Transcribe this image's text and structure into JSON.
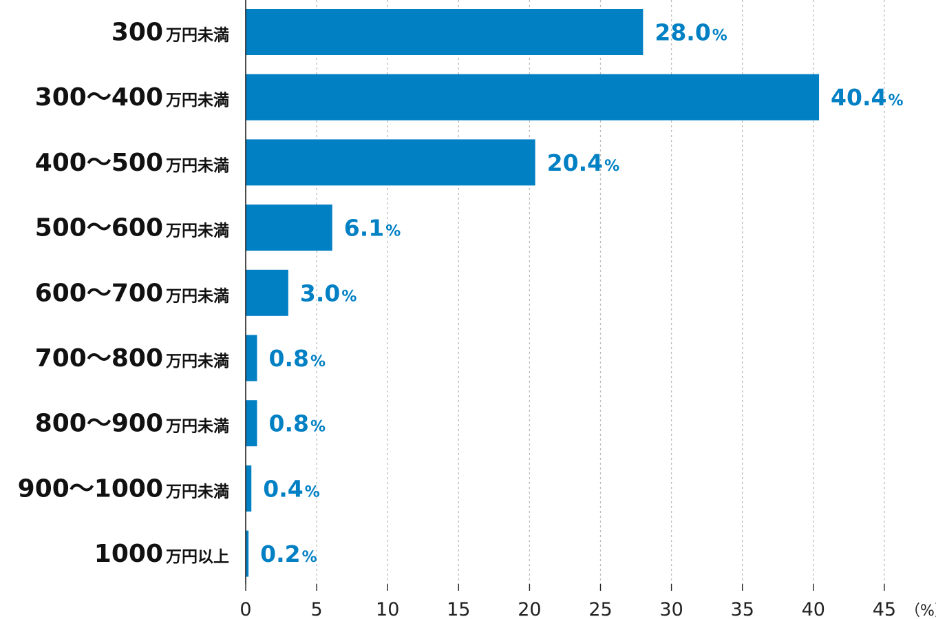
{
  "chart_data": {
    "type": "bar",
    "orientation": "horizontal",
    "categories": [
      {
        "range": "300",
        "unit": "万円未満"
      },
      {
        "range": "300～400",
        "unit": "万円未満"
      },
      {
        "range": "400～500",
        "unit": "万円未満"
      },
      {
        "range": "500～600",
        "unit": "万円未満"
      },
      {
        "range": "600～700",
        "unit": "万円未満"
      },
      {
        "range": "700～800",
        "unit": "万円未満"
      },
      {
        "range": "800～900",
        "unit": "万円未満"
      },
      {
        "range": "900～1000",
        "unit": "万円未満"
      },
      {
        "range": "1000",
        "unit": "万円以上"
      }
    ],
    "values": [
      28.0,
      40.4,
      20.4,
      6.1,
      3.0,
      0.8,
      0.8,
      0.4,
      0.2
    ],
    "value_labels": [
      "28.0",
      "40.4",
      "20.4",
      "6.1",
      "3.0",
      "0.8",
      "0.8",
      "0.4",
      "0.2"
    ],
    "value_suffix": "%",
    "x_unit": "（%）",
    "xlim": [
      0,
      45
    ],
    "x_ticks": [
      0,
      5,
      10,
      15,
      20,
      25,
      30,
      35,
      40,
      45
    ],
    "grid": "vertical-dotted",
    "colors": {
      "bar": "#0280c4",
      "value_label": "#0280c4",
      "category_label": "#111111",
      "axis": "#222222",
      "grid": "#bbbbbb"
    }
  }
}
